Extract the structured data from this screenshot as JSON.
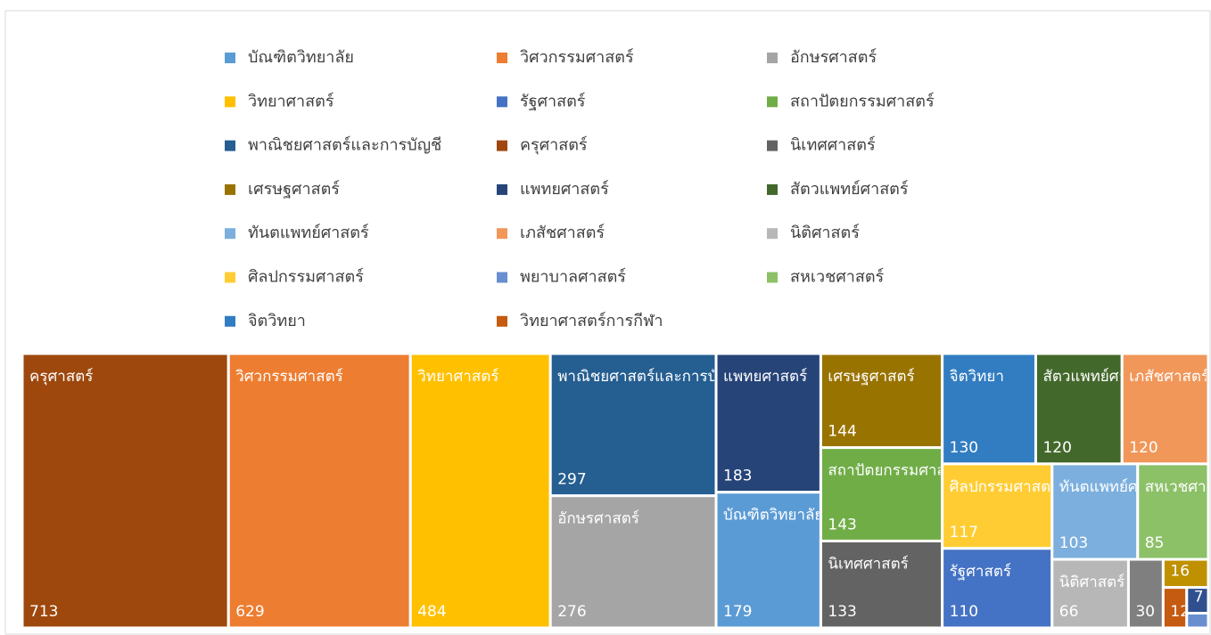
{
  "chart_data": {
    "type": "treemap",
    "categories": [
      "บัณฑิตวิทยาลัย",
      "วิศวกรรมศาสตร์",
      "อักษรศาสตร์",
      "วิทยาศาสตร์",
      "รัฐศาสตร์",
      "สถาปัตยกรรมศาสตร์",
      "พาณิชยศาสตร์และการบัญชี",
      "ครุศาสตร์",
      "นิเทศศาสตร์",
      "เศรษฐศาสตร์",
      "แพทยศาสตร์",
      "สัตวแพทย์ศาสตร์",
      "ทันตแพทย์ศาสตร์",
      "เภสัชศาสตร์",
      "นิติศาสตร์",
      "ศิลปกรรมศาสตร์",
      "พยาบาลศาสตร์",
      "สหเวชศาสตร์",
      "จิตวิทยา",
      "วิทยาศาสตร์การกีฬา",
      null,
      null,
      null
    ],
    "values": [
      179,
      629,
      276,
      484,
      110,
      143,
      297,
      713,
      133,
      144,
      183,
      120,
      103,
      120,
      66,
      117,
      4,
      85,
      130,
      12,
      30,
      16,
      7
    ],
    "colors": [
      "#5b9bd5",
      "#ed7d31",
      "#a5a5a5",
      "#ffc000",
      "#4472c4",
      "#70ad47",
      "#255e91",
      "#9e480e",
      "#636363",
      "#997300",
      "#264478",
      "#43682b",
      "#7cafdd",
      "#f1975a",
      "#b7b7b7",
      "#ffcd33",
      "#698ed0",
      "#8cc168",
      "#327dc2",
      "#c55a11",
      "#7f7f7f",
      "#bf9000",
      "#2f4f8f"
    ],
    "legend": "top"
  }
}
